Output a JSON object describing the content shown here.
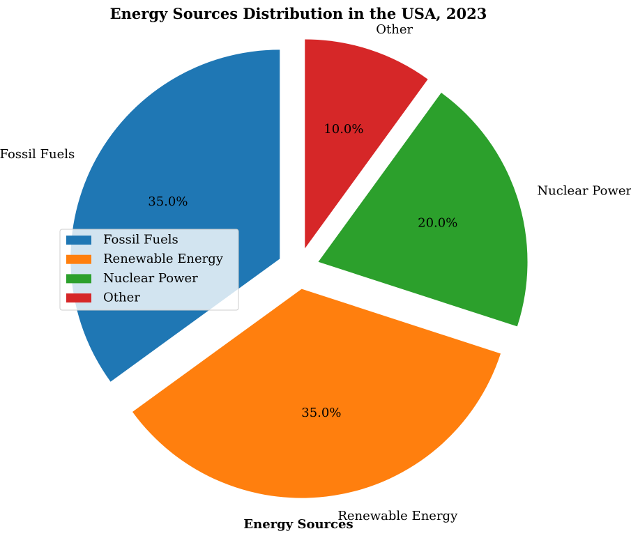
{
  "chart_data": {
    "type": "pie",
    "title": "Energy Sources Distribution in the USA, 2023",
    "xlabel": "Energy Sources",
    "categories": [
      "Fossil Fuels",
      "Renewable Energy",
      "Nuclear Power",
      "Other"
    ],
    "values": [
      35,
      35,
      20,
      10
    ],
    "percent_labels": [
      "35.0%",
      "35.0%",
      "20.0%",
      "10.0%"
    ],
    "colors": [
      "#1f77b4",
      "#ff7f0e",
      "#2ca02c",
      "#d62728"
    ],
    "explode": [
      0.1,
      0.1,
      0.1,
      0.1
    ],
    "start_angle": 90,
    "counterclock": true,
    "legend": {
      "placement": "center-left",
      "entries": [
        "Fossil Fuels",
        "Renewable Energy",
        "Nuclear Power",
        "Other"
      ]
    }
  }
}
